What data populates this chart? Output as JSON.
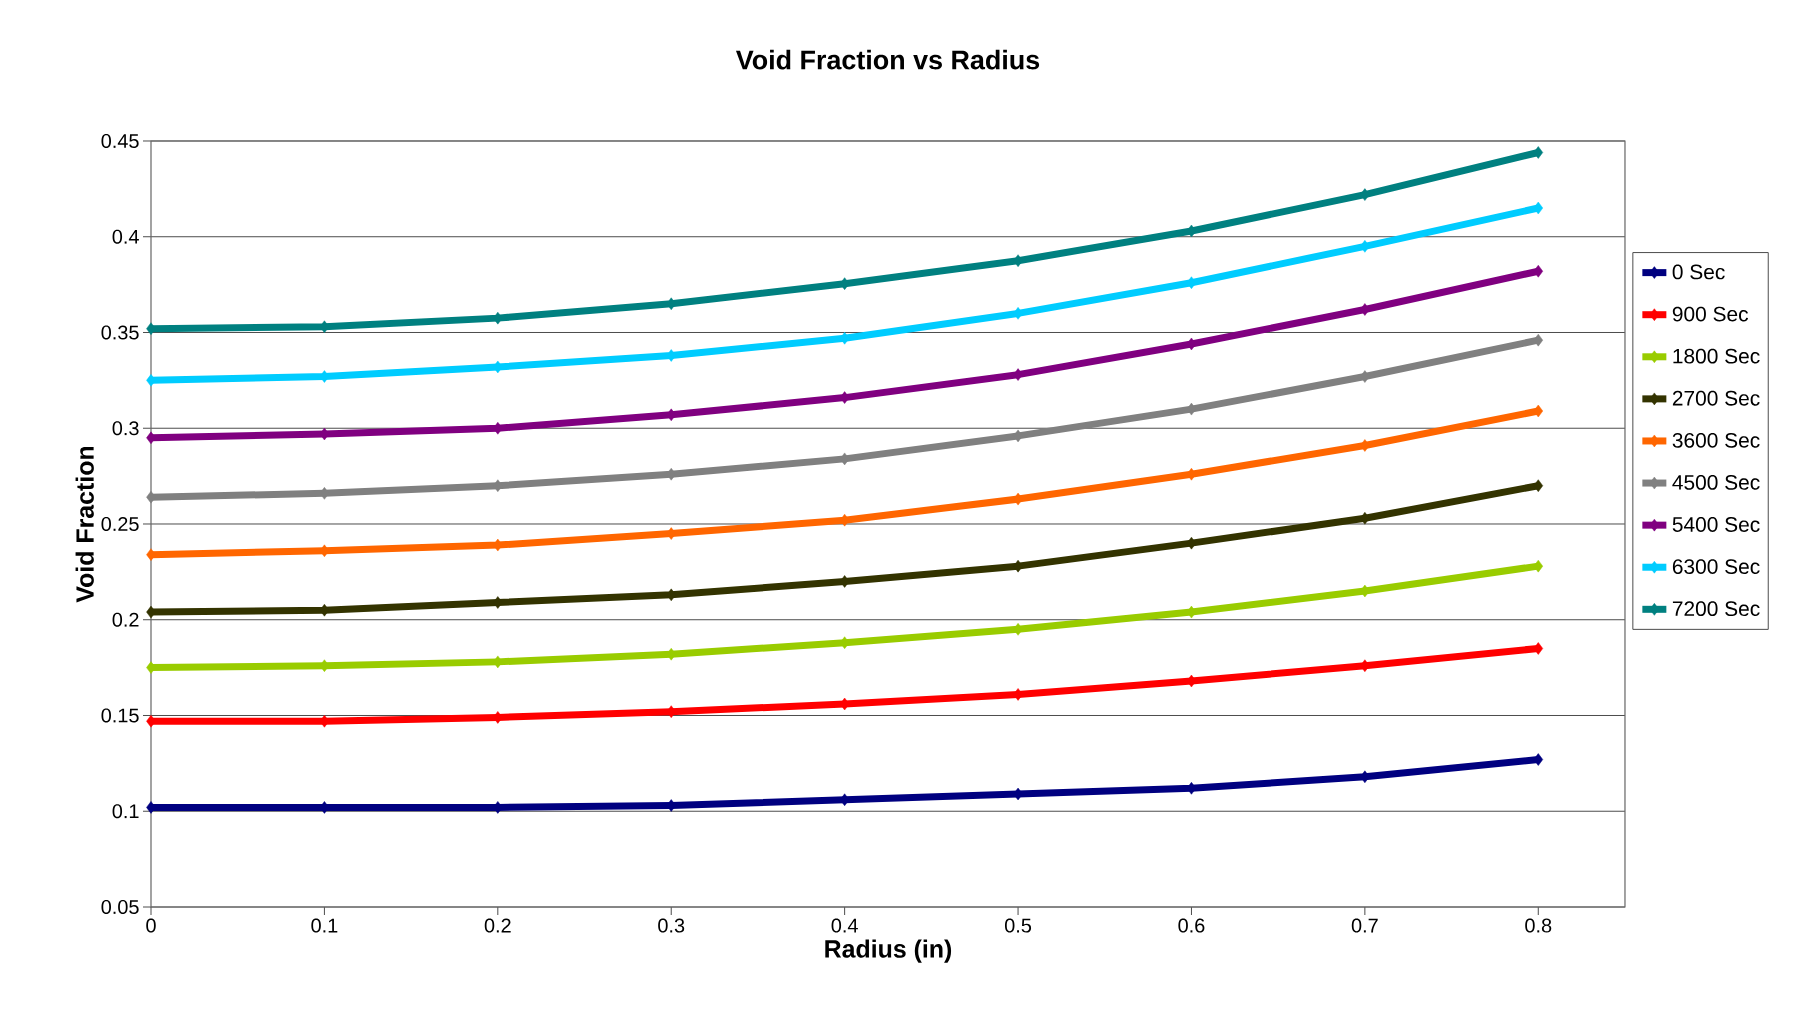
{
  "chart_data": {
    "type": "line",
    "title": "Void Fraction vs Radius",
    "xlabel": "Radius (in)",
    "ylabel": "Void Fraction",
    "x": [
      0,
      0.1,
      0.2,
      0.3,
      0.4,
      0.5,
      0.6,
      0.7,
      0.8
    ],
    "xlim": [
      0,
      0.85
    ],
    "xticks": [
      0,
      0.1,
      0.2,
      0.3,
      0.4,
      0.5,
      0.6,
      0.7,
      0.8
    ],
    "ylim": [
      0.05,
      0.45
    ],
    "yticks": [
      0.05,
      0.1,
      0.15,
      0.2,
      0.25,
      0.3,
      0.35,
      0.4,
      0.45
    ],
    "grid": "y",
    "legend": "right",
    "marker": "diamond",
    "series": [
      {
        "name": "0 Sec",
        "color": "#000080",
        "values": [
          0.102,
          0.102,
          0.102,
          0.103,
          0.106,
          0.109,
          0.112,
          0.118,
          0.127
        ]
      },
      {
        "name": "900 Sec",
        "color": "#ff0000",
        "values": [
          0.147,
          0.147,
          0.149,
          0.152,
          0.156,
          0.161,
          0.168,
          0.176,
          0.185
        ]
      },
      {
        "name": "1800 Sec",
        "color": "#99cc00",
        "values": [
          0.175,
          0.176,
          0.178,
          0.182,
          0.188,
          0.195,
          0.204,
          0.215,
          0.228
        ]
      },
      {
        "name": "2700 Sec",
        "color": "#333300",
        "values": [
          0.204,
          0.205,
          0.209,
          0.213,
          0.22,
          0.228,
          0.24,
          0.253,
          0.27
        ]
      },
      {
        "name": "3600 Sec",
        "color": "#ff6600",
        "values": [
          0.234,
          0.236,
          0.239,
          0.245,
          0.252,
          0.263,
          0.276,
          0.291,
          0.309
        ]
      },
      {
        "name": "4500 Sec",
        "color": "#808080",
        "values": [
          0.264,
          0.266,
          0.27,
          0.276,
          0.284,
          0.296,
          0.31,
          0.327,
          0.346
        ]
      },
      {
        "name": "5400 Sec",
        "color": "#800080",
        "values": [
          0.295,
          0.297,
          0.3,
          0.307,
          0.316,
          0.328,
          0.344,
          0.362,
          0.382
        ]
      },
      {
        "name": "6300 Sec",
        "color": "#00ccff",
        "values": [
          0.325,
          0.327,
          0.332,
          0.338,
          0.347,
          0.36,
          0.376,
          0.395,
          0.415
        ]
      },
      {
        "name": "7200 Sec",
        "color": "#008080",
        "values": [
          0.352,
          0.353,
          0.3575,
          0.365,
          0.3755,
          0.3875,
          0.403,
          0.422,
          0.444
        ]
      }
    ]
  }
}
